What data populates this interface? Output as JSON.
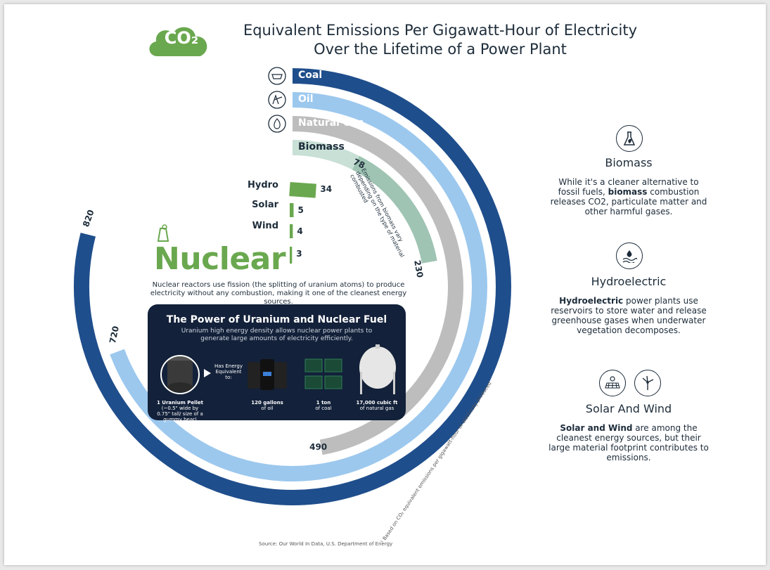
{
  "title_line1": "Equivalent Emissions Per Gigawatt-Hour of Electricity",
  "title_line2": "Over the Lifetime of a Power Plant",
  "co2_badge": "CO₂",
  "chart_data": {
    "type": "radial-bar",
    "title": "Equivalent Emissions Per Gigawatt-Hour of Electricity Over the Lifetime of a Power Plant",
    "unit": "",
    "categories": [
      "Coal",
      "Oil",
      "Natural Gas",
      "Biomass",
      "Hydro",
      "Solar",
      "Wind",
      "Nuclear"
    ],
    "values": [
      820,
      720,
      490,
      230,
      34,
      5,
      4,
      3
    ],
    "value_labels": [
      "820",
      "720",
      "490",
      "230",
      "34",
      "5",
      "4",
      "3"
    ],
    "biomass_range": [
      78,
      230
    ],
    "biomass_range_labels": [
      "78",
      "230"
    ],
    "colors": {
      "Coal": "#1f4e8c",
      "Oil": "#9cc8ee",
      "Natural Gas": "#bdbdbd",
      "Biomass": "#c8e0d6",
      "Biomass_range": "#9fc4b3",
      "Hydro": "#6aa84f",
      "Solar": "#6aa84f",
      "Wind": "#6aa84f",
      "Nuclear": "#6aa84f"
    },
    "annotation": "Emissions from biomass vary depending on the type of material combusted"
  },
  "nuclear": {
    "heading": "Nuclear",
    "description": "Nuclear reactors use fission (the splitting of uranium atoms) to produce electricity without any combustion, making it one of the cleanest energy sources."
  },
  "panel": {
    "title": "The Power of Uranium and Nuclear Fuel",
    "subtitle": "Uranium high energy density allows nuclear power plants to generate large amounts of electricity efficiently.",
    "has_energy": "Has Energy Equivalent to:",
    "pellet_label": "1 Uranium Pellet",
    "pellet_detail": "(~0.5\" wide by 0.75\" tall/ size of a gummy bear)",
    "oil_label": "120 gallons",
    "oil_sub": "of oil",
    "coal_label": "1 ton",
    "coal_sub": "of coal",
    "gas_label": "17,000 cubic ft",
    "gas_sub": "of natural gas"
  },
  "side": {
    "biomass_title": "Biomass",
    "biomass_text_a": "While it's a cleaner alternative to fossil fuels, ",
    "biomass_text_b": "biomass",
    "biomass_text_c": " combustion releases CO2, particulate matter and other harmful gases.",
    "hydro_title": "Hydroelectric",
    "hydro_text_a": "Hydroelectric",
    "hydro_text_b": " power plants use reservoirs to store water and release greenhouse gases when underwater vegetation decomposes.",
    "sw_title": "Solar And Wind",
    "sw_text_a": "Solar and Wind",
    "sw_text_b": " are among the cleanest energy sources, but their large material footprint contributes to emissions."
  },
  "source": "Source: Our World In Data, U.S. Department of Energy",
  "footnote": "¹ Based on CO₂ equivalent emissions per gigawatt-hour of electricity produced",
  "icons": [
    "cloud-icon",
    "coal-cart-icon",
    "oil-pump-icon",
    "flame-icon",
    "flask-leaf-icon",
    "water-plant-icon",
    "solar-panel-icon",
    "wind-turbine-icon",
    "nuclear-plant-icon",
    "uranium-pellet-icon",
    "oil-barrels-icon",
    "coal-wagons-icon",
    "gas-tank-icon"
  ]
}
